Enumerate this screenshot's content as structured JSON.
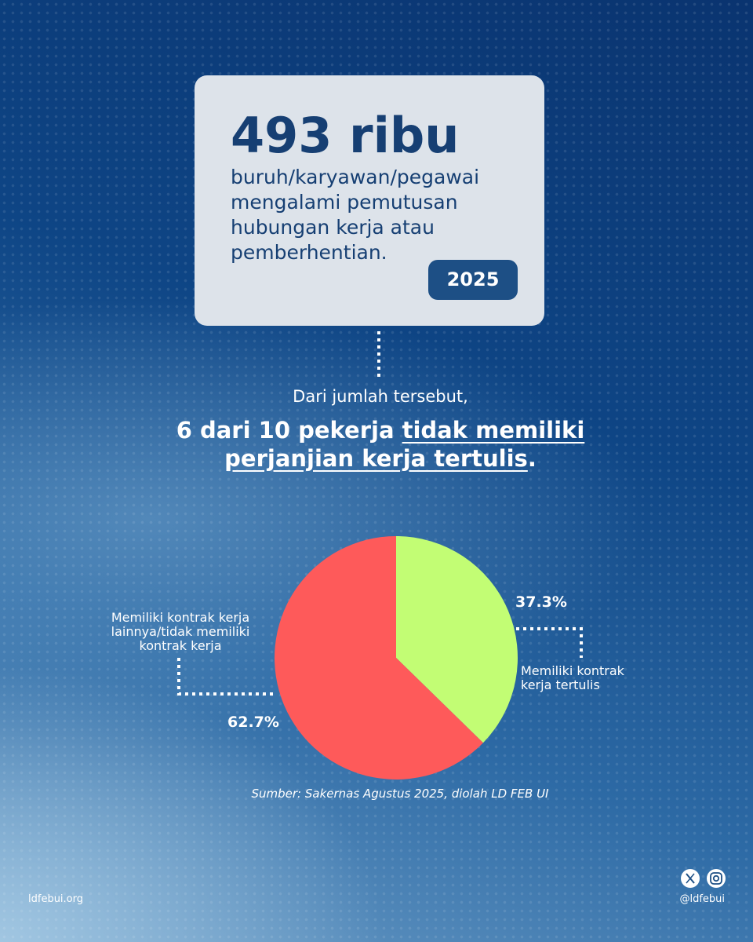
{
  "header": {
    "stat": "493 ribu",
    "description": "buruh/karyawan/pegawai mengalami pemutusan hubungan kerja atau pemberhentian.",
    "year": "2025"
  },
  "intro": "Dari jumlah tersebut,",
  "headline": {
    "lead": "6 dari 10 pekerja ",
    "emphasis": "tidak memiliki perjanjian kerja tertulis",
    "end": "."
  },
  "chart_data": {
    "type": "pie",
    "categories": [
      "Memiliki kontrak kerja tertulis",
      "Memiliki kontrak kerja lainnya/tidak memiliki kontrak kerja"
    ],
    "values": [
      37.3,
      62.7
    ],
    "value_labels": [
      "37.3%",
      "62.7%"
    ],
    "colors": [
      "#c2fd74",
      "#fe5a5a"
    ],
    "start_angle": 0,
    "direction": "clockwise",
    "source": "Sumber: Sakernas Agustus 2025, diolah LD FEB UI"
  },
  "footer": {
    "website": "ldfebui.org",
    "handle": "@ldfebui"
  }
}
